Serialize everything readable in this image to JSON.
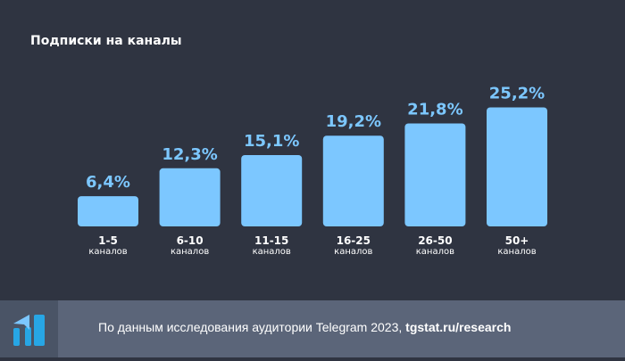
{
  "title": "Подписки на каналы",
  "colors": {
    "background": "#2f3441",
    "bar": "#7cc7ff",
    "value_label": "#7cc7ff",
    "footer": "#5b6579"
  },
  "chart_data": {
    "type": "bar",
    "title": "Подписки на каналы",
    "categories": [
      "1-5",
      "6-10",
      "11-15",
      "16-25",
      "26-50",
      "50+"
    ],
    "category_sublabel": "каналов",
    "values": [
      6.4,
      12.3,
      15.1,
      19.2,
      21.8,
      25.2
    ],
    "value_labels": [
      "6,4%",
      "12,3%",
      "15,1%",
      "19,2%",
      "21,8%",
      "25,2%"
    ],
    "unit": "%",
    "grid": false,
    "legend": "none"
  },
  "footer": {
    "text": "По данным исследования аудитории Telegram 2023, ",
    "link": "tgstat.ru/research",
    "logo_icon": "tgstat-logo-icon"
  }
}
